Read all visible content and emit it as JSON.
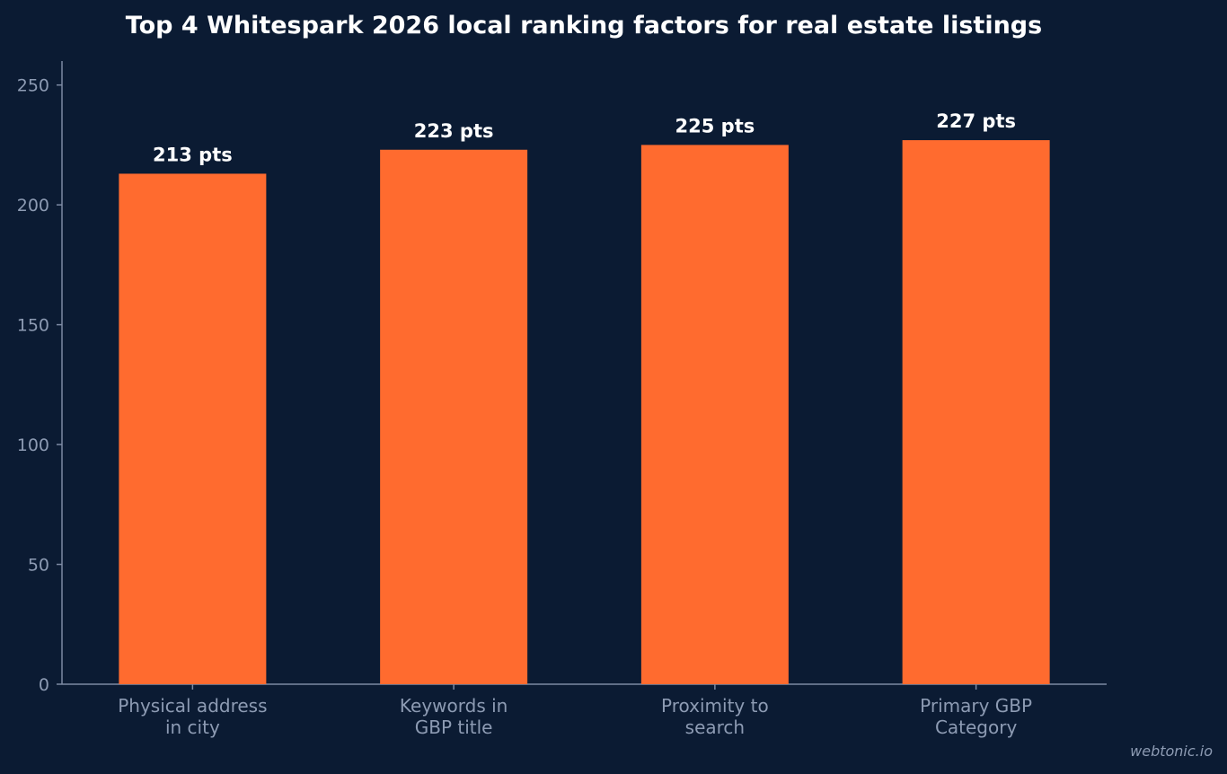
{
  "chart_data": {
    "type": "bar",
    "title": "Top 4 Whitespark 2026 local ranking factors for real estate listings",
    "xlabel": "",
    "ylabel": "",
    "categories": [
      [
        "Physical address",
        "in city"
      ],
      [
        "Keywords in",
        "GBP title"
      ],
      [
        "Proximity to",
        "search"
      ],
      [
        "Primary GBP",
        "Category"
      ]
    ],
    "values": [
      213,
      223,
      225,
      227
    ],
    "value_labels": [
      "213 pts",
      "223 pts",
      "225 pts",
      "227 pts"
    ],
    "yticks": [
      0,
      50,
      100,
      150,
      200,
      250
    ],
    "ylim": [
      0,
      260
    ],
    "grid": false,
    "legend": "none",
    "bar_color": "#ff6b2f",
    "background_color": "#0b1b33"
  },
  "watermark": "webtonic.io"
}
